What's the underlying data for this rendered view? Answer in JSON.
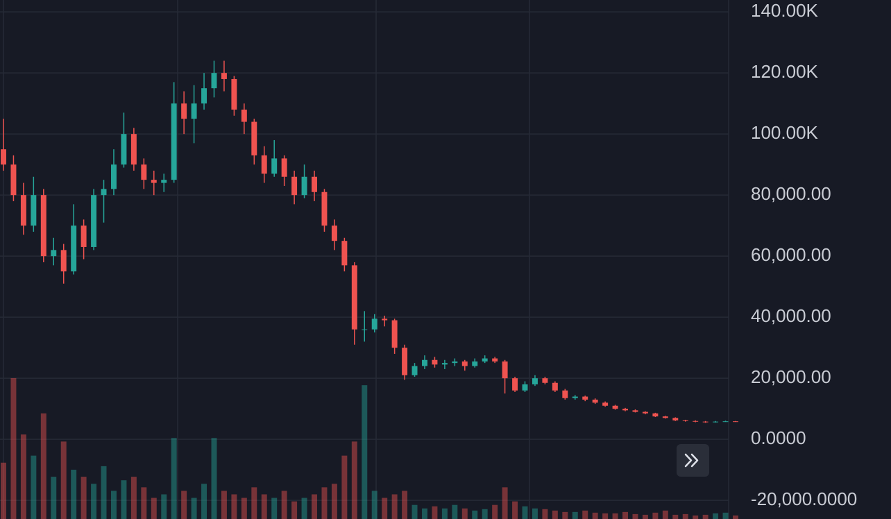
{
  "chart_data": {
    "type": "candlestick",
    "up_color": "#26a69a",
    "down_color": "#ef5350",
    "grid": true,
    "ylim": [
      -26100,
      143900
    ],
    "yticks": [
      {
        "value": -20000,
        "label": "-20,000.0000"
      },
      {
        "value": 0,
        "label": "0.0000"
      },
      {
        "value": 20000,
        "label": "20,000.00"
      },
      {
        "value": 40000,
        "label": "40,000.00"
      },
      {
        "value": 60000,
        "label": "60,000.00"
      },
      {
        "value": 80000,
        "label": "80,000.00"
      },
      {
        "value": 100000,
        "label": "100.00K"
      },
      {
        "value": 120000,
        "label": "120.00K"
      },
      {
        "value": 140000,
        "label": "140.00K"
      }
    ],
    "ohlc": [
      [
        95000,
        105000,
        88000,
        90000
      ],
      [
        90000,
        93000,
        78000,
        80000
      ],
      [
        80000,
        84000,
        67000,
        70000
      ],
      [
        70000,
        86000,
        68000,
        80000
      ],
      [
        80000,
        82000,
        58000,
        60000
      ],
      [
        60000,
        66000,
        57000,
        62000
      ],
      [
        62000,
        64000,
        51000,
        55000
      ],
      [
        55000,
        77000,
        54000,
        70000
      ],
      [
        70000,
        72000,
        59000,
        63000
      ],
      [
        63000,
        82000,
        62000,
        80000
      ],
      [
        80000,
        85000,
        71000,
        82000
      ],
      [
        82000,
        95000,
        80000,
        90000
      ],
      [
        90000,
        107000,
        89000,
        100000
      ],
      [
        100000,
        102000,
        88000,
        90000
      ],
      [
        90000,
        92000,
        82000,
        85000
      ],
      [
        85000,
        88000,
        80000,
        84000
      ],
      [
        84000,
        87000,
        81000,
        85000
      ],
      [
        85000,
        117000,
        84000,
        110000
      ],
      [
        110000,
        114000,
        100000,
        105000
      ],
      [
        105000,
        116000,
        97000,
        110000
      ],
      [
        110000,
        120000,
        108000,
        115000
      ],
      [
        115000,
        124000,
        112000,
        120000
      ],
      [
        120000,
        124000,
        114000,
        118000
      ],
      [
        118000,
        119000,
        106000,
        108000
      ],
      [
        108000,
        110000,
        100000,
        104000
      ],
      [
        104000,
        105000,
        90000,
        93000
      ],
      [
        93000,
        96000,
        84000,
        87000
      ],
      [
        87000,
        98000,
        86000,
        92000
      ],
      [
        92000,
        93000,
        83000,
        86000
      ],
      [
        86000,
        88000,
        77000,
        80000
      ],
      [
        80000,
        90000,
        79000,
        86000
      ],
      [
        86000,
        88000,
        78000,
        81000
      ],
      [
        81000,
        82000,
        68000,
        70000
      ],
      [
        70000,
        72000,
        62000,
        65000
      ],
      [
        65000,
        66000,
        55000,
        57000
      ],
      [
        57000,
        58000,
        31000,
        36000
      ],
      [
        36000,
        42000,
        32000,
        36000
      ],
      [
        36000,
        41000,
        35000,
        39500
      ],
      [
        39500,
        40500,
        37000,
        39000
      ],
      [
        39000,
        39500,
        28000,
        30000
      ],
      [
        30000,
        31000,
        19500,
        21000
      ],
      [
        21000,
        25000,
        20500,
        24000
      ],
      [
        24000,
        27500,
        23000,
        26000
      ],
      [
        26000,
        27000,
        23500,
        24500
      ],
      [
        24500,
        26000,
        23000,
        25000
      ],
      [
        25000,
        26500,
        24000,
        25500
      ],
      [
        25500,
        26000,
        22500,
        24000
      ],
      [
        24000,
        26500,
        23500,
        25500
      ],
      [
        25500,
        27500,
        25000,
        26500
      ],
      [
        26500,
        27000,
        25000,
        25500
      ],
      [
        25500,
        26000,
        15000,
        20000
      ],
      [
        20000,
        20500,
        15500,
        16000
      ],
      [
        16000,
        19000,
        15500,
        18000
      ],
      [
        18000,
        21000,
        17500,
        20000
      ],
      [
        20000,
        20500,
        18000,
        18500
      ],
      [
        18500,
        19000,
        15500,
        16000
      ],
      [
        16000,
        16500,
        13000,
        13500
      ],
      [
        13500,
        14500,
        13000,
        14000
      ],
      [
        14000,
        14300,
        12500,
        13000
      ],
      [
        13000,
        13400,
        11600,
        12000
      ],
      [
        12000,
        12400,
        10700,
        11000
      ],
      [
        11000,
        11300,
        9700,
        10000
      ],
      [
        10000,
        10300,
        9200,
        9500
      ],
      [
        9500,
        9800,
        8800,
        9000
      ],
      [
        9000,
        9200,
        8200,
        8500
      ],
      [
        8500,
        8700,
        7300,
        7500
      ],
      [
        7500,
        7700,
        6800,
        7000
      ],
      [
        7000,
        7200,
        6000,
        6200
      ],
      [
        6200,
        6400,
        5800,
        6000
      ],
      [
        6000,
        6200,
        5600,
        5800
      ],
      [
        5800,
        6000,
        5400,
        5600
      ],
      [
        5600,
        6000,
        5500,
        5800
      ],
      [
        5800,
        6100,
        5700,
        5900
      ],
      [
        5900,
        6000,
        5700,
        5800
      ]
    ],
    "volume": [
      80,
      200,
      120,
      90,
      150,
      60,
      110,
      70,
      60,
      50,
      75,
      40,
      55,
      60,
      45,
      30,
      35,
      115,
      40,
      30,
      50,
      115,
      40,
      35,
      30,
      45,
      35,
      30,
      40,
      25,
      30,
      35,
      45,
      50,
      90,
      110,
      190,
      40,
      30,
      35,
      40,
      20,
      15,
      18,
      15,
      20,
      15,
      12,
      14,
      20,
      45,
      25,
      18,
      15,
      14,
      12,
      10,
      10,
      12,
      9,
      8,
      8,
      10,
      7,
      6,
      9,
      12,
      6,
      7,
      5,
      6,
      8,
      9,
      5
    ]
  }
}
